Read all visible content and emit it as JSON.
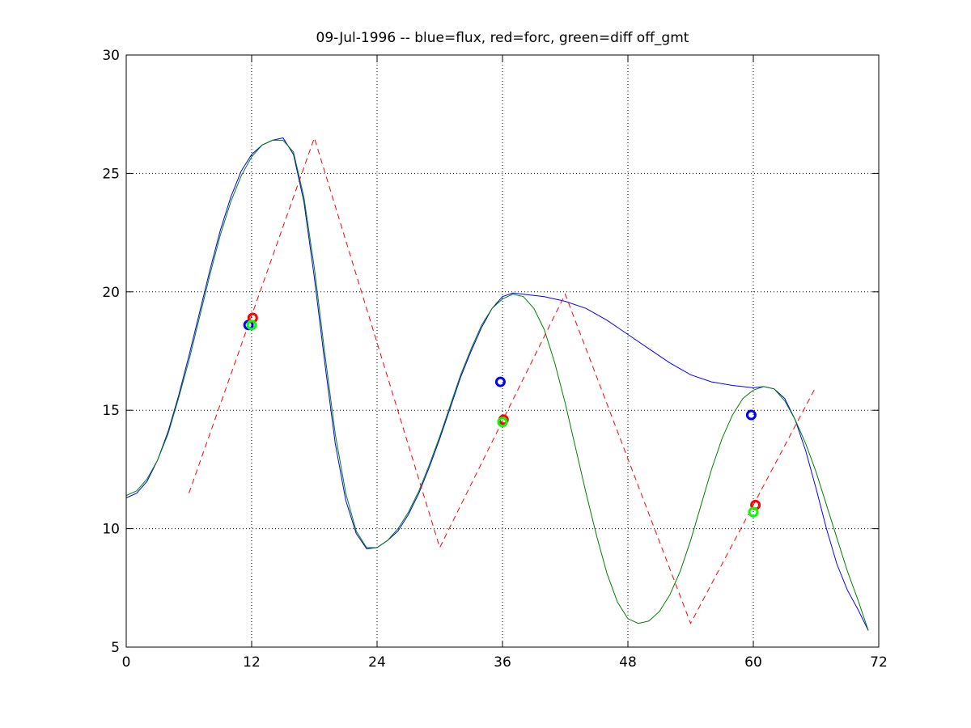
{
  "chart_data": {
    "type": "line",
    "title": "09-Jul-1996 -- blue=flux, red=forc, green=diff off_gmt",
    "xlabel": "",
    "ylabel": "",
    "xlim": [
      0,
      72
    ],
    "ylim": [
      5,
      30
    ],
    "xticks": [
      "0",
      "12",
      "24",
      "36",
      "48",
      "60",
      "72"
    ],
    "yticks": [
      "5",
      "10",
      "15",
      "20",
      "25",
      "30"
    ],
    "grid": true,
    "colors": {
      "flux": "#0000ff",
      "forc": "#ff0000",
      "diff": "#008000",
      "diff_marker": "#00ff00"
    },
    "series": [
      {
        "color": "#0000ff",
        "style": "solid",
        "x": [
          0,
          1,
          2,
          3,
          4,
          5,
          6,
          7,
          8,
          9,
          10,
          11,
          12,
          13,
          14,
          15,
          16,
          17,
          18,
          19,
          20,
          21,
          22,
          23,
          24,
          25,
          26,
          27,
          28,
          29,
          30,
          31,
          32,
          33,
          34,
          35,
          36,
          37,
          38,
          39,
          40,
          41,
          42,
          44,
          46,
          48,
          50,
          52,
          54,
          56,
          58,
          60,
          61,
          62,
          63,
          64,
          65,
          66,
          67,
          68,
          69,
          70,
          71
        ],
        "y": [
          11.3,
          11.5,
          12.0,
          12.9,
          14.1,
          15.6,
          17.3,
          19.1,
          20.9,
          22.6,
          24.0,
          25.1,
          25.8,
          26.2,
          26.4,
          26.5,
          25.8,
          23.8,
          20.6,
          17.0,
          13.6,
          11.2,
          9.8,
          9.15,
          9.2,
          9.5,
          9.9,
          10.6,
          11.5,
          12.6,
          13.8,
          15.1,
          16.4,
          17.5,
          18.5,
          19.3,
          19.8,
          19.95,
          19.9,
          19.85,
          19.8,
          19.7,
          19.6,
          19.3,
          18.8,
          18.2,
          17.6,
          17.0,
          16.5,
          16.2,
          16.05,
          15.95,
          16.0,
          15.9,
          15.5,
          14.6,
          13.3,
          11.7,
          10.0,
          8.5,
          7.4,
          6.6,
          5.7
        ]
      },
      {
        "color": "#008000",
        "style": "solid",
        "x": [
          0,
          1,
          2,
          3,
          4,
          5,
          6,
          7,
          8,
          9,
          10,
          11,
          12,
          13,
          14,
          15,
          16,
          17,
          18,
          19,
          20,
          21,
          22,
          23,
          24,
          25,
          26,
          27,
          28,
          29,
          30,
          31,
          32,
          33,
          34,
          35,
          36,
          37,
          38,
          39,
          40,
          41,
          42,
          43,
          44,
          45,
          46,
          47,
          48,
          49,
          50,
          51,
          52,
          53,
          54,
          55,
          56,
          57,
          58,
          59,
          60,
          61,
          62,
          63,
          64,
          65,
          66,
          67,
          68,
          69,
          70,
          71
        ],
        "y": [
          11.4,
          11.6,
          12.1,
          12.9,
          14.0,
          15.5,
          17.1,
          18.9,
          20.7,
          22.4,
          23.8,
          24.9,
          25.7,
          26.2,
          26.4,
          26.4,
          25.9,
          24.0,
          21.0,
          17.4,
          14.0,
          11.5,
          9.9,
          9.2,
          9.2,
          9.5,
          10.0,
          10.7,
          11.6,
          12.7,
          13.9,
          15.2,
          16.5,
          17.6,
          18.6,
          19.3,
          19.7,
          19.9,
          19.8,
          19.3,
          18.4,
          17.0,
          15.3,
          13.4,
          11.5,
          9.7,
          8.1,
          6.9,
          6.2,
          6.0,
          6.1,
          6.5,
          7.2,
          8.2,
          9.5,
          11.0,
          12.5,
          13.8,
          14.8,
          15.5,
          15.85,
          16.0,
          15.9,
          15.4,
          14.6,
          13.6,
          12.4,
          11.0,
          9.6,
          8.2,
          7.0,
          5.7
        ]
      },
      {
        "color": "#ff0000",
        "style": "dashed",
        "x": [
          6,
          18,
          30,
          42,
          54,
          66
        ],
        "y": [
          11.5,
          26.5,
          9.2,
          19.9,
          6.0,
          16.0
        ]
      }
    ],
    "markers": [
      {
        "color": "#0000ff",
        "x": [
          11.7,
          35.8,
          59.8
        ],
        "y": [
          18.6,
          16.2,
          14.8
        ]
      },
      {
        "color": "#ff0000",
        "x": [
          12.1,
          36.1,
          60.2
        ],
        "y": [
          18.9,
          14.6,
          11.0
        ]
      },
      {
        "color": "#00ff00",
        "x": [
          12.0,
          36.0,
          60.0
        ],
        "y": [
          18.6,
          14.5,
          10.7
        ]
      }
    ]
  }
}
